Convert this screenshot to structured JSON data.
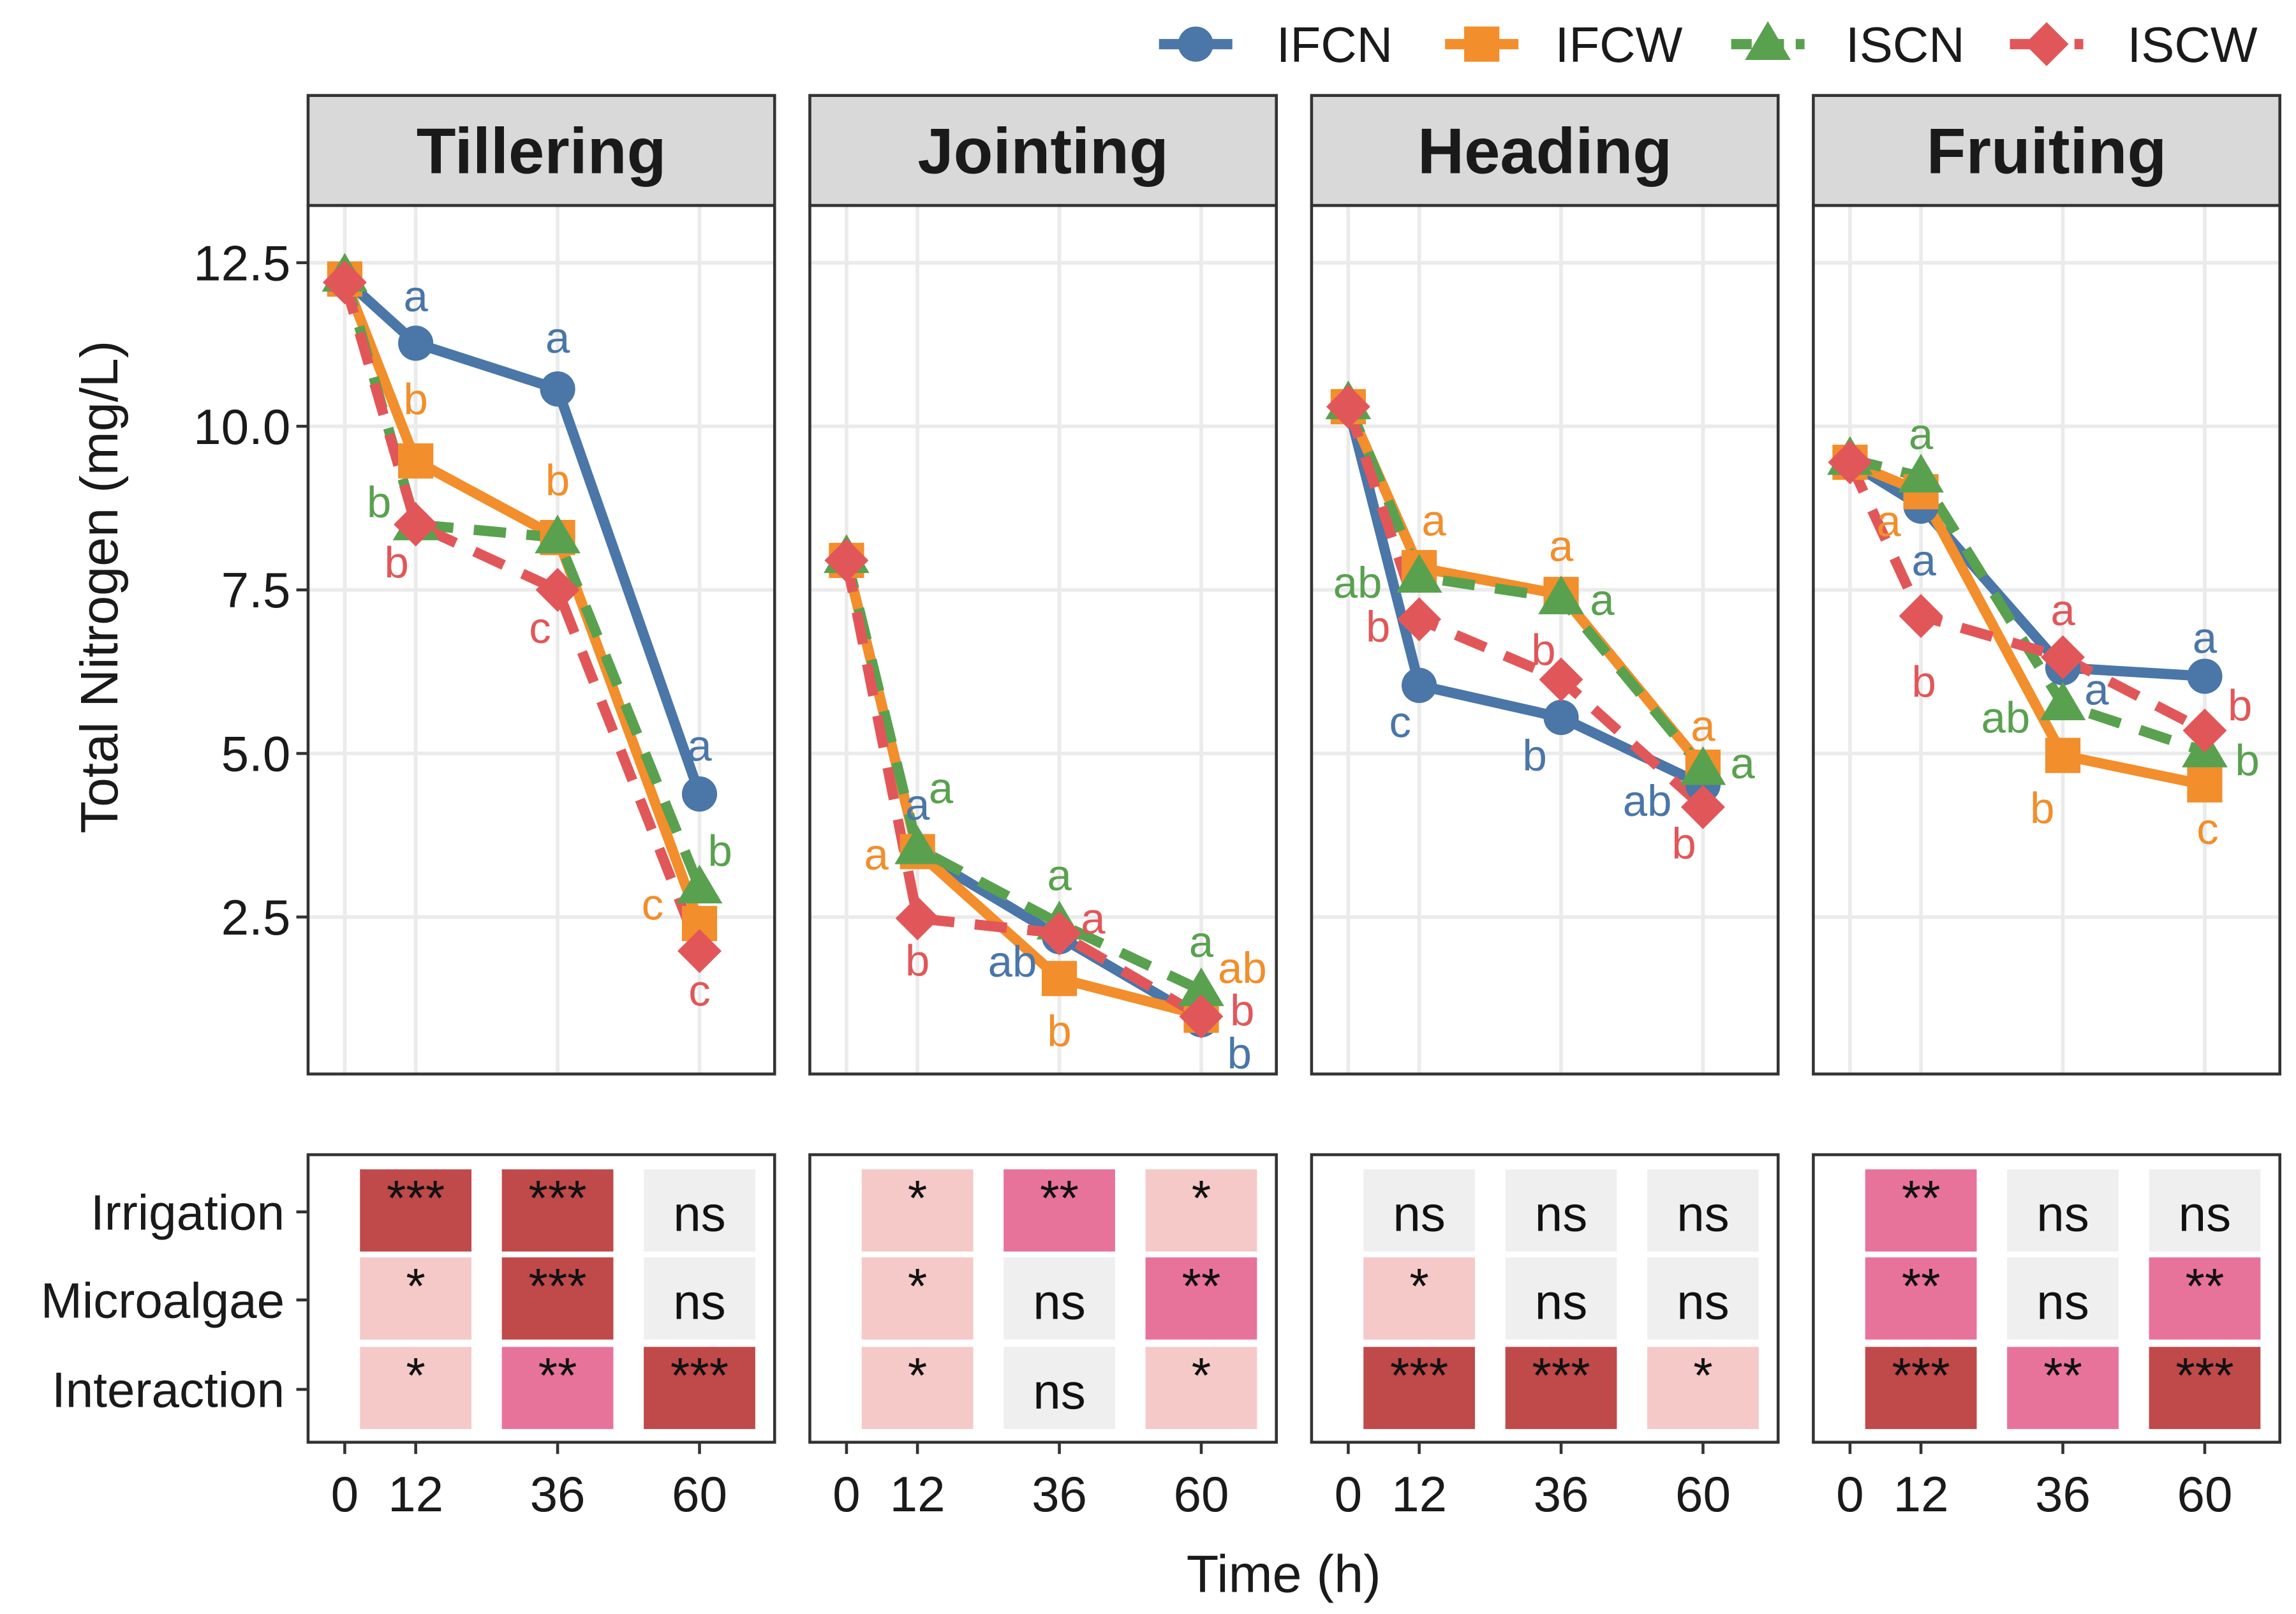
{
  "legend": {
    "items": [
      {
        "label": "IFCN",
        "color": "#4A76A8",
        "shape": "circle",
        "dash": "solid"
      },
      {
        "label": "IFCW",
        "color": "#F28E2B",
        "shape": "square",
        "dash": "solid"
      },
      {
        "label": "ISCN",
        "color": "#59A14F",
        "shape": "triangle",
        "dash": "dashed"
      },
      {
        "label": "ISCW",
        "color": "#E15759",
        "shape": "diamond",
        "dash": "dashed"
      }
    ]
  },
  "chart_data": {
    "type": "line",
    "ylabel": "Total Nitrogen (mg/L)",
    "xlabel": "Time (h)",
    "x": [
      0,
      12,
      36,
      60
    ],
    "x_tick_labels": [
      "0",
      "12",
      "36",
      "60"
    ],
    "y_ticks": [
      2.5,
      5.0,
      7.5,
      10.0,
      12.5
    ],
    "y_tick_labels": [
      "2.5",
      "5.0",
      "7.5",
      "10.0",
      "12.5"
    ],
    "ylim": [
      0.35,
      13.2
    ],
    "grid": true,
    "legend_position": "top-right",
    "panels": [
      {
        "title": "Tillering",
        "series": [
          {
            "name": "IFCN",
            "values": [
              12.25,
              11.27,
              10.57,
              4.38
            ],
            "letters": [
              "",
              "a",
              "a",
              "a"
            ]
          },
          {
            "name": "IFCW",
            "values": [
              12.25,
              9.47,
              8.3,
              2.4
            ],
            "letters": [
              "",
              "b",
              "b",
              "c"
            ]
          },
          {
            "name": "ISCN",
            "values": [
              12.3,
              8.5,
              8.3,
              2.95
            ],
            "letters": [
              "",
              "b",
              "",
              "b"
            ]
          },
          {
            "name": "ISCW",
            "values": [
              12.2,
              8.5,
              7.5,
              1.98
            ],
            "letters": [
              "",
              "b",
              "c",
              "c"
            ]
          }
        ]
      },
      {
        "title": "Jointing",
        "series": [
          {
            "name": "IFCN",
            "values": [
              7.95,
              3.5,
              2.2,
              0.93
            ],
            "letters": [
              "",
              "a",
              "ab",
              "b"
            ]
          },
          {
            "name": "IFCW",
            "values": [
              7.95,
              3.5,
              1.56,
              1.0
            ],
            "letters": [
              "",
              "a",
              "b",
              "ab"
            ]
          },
          {
            "name": "ISCN",
            "values": [
              8.0,
              3.55,
              2.4,
              1.38
            ],
            "letters": [
              "",
              "a",
              "a",
              "a"
            ]
          },
          {
            "name": "ISCW",
            "values": [
              7.95,
              2.48,
              2.25,
              0.98
            ],
            "letters": [
              "",
              "b",
              "a",
              "b"
            ]
          }
        ]
      },
      {
        "title": "Heading",
        "series": [
          {
            "name": "IFCN",
            "values": [
              10.3,
              6.04,
              5.55,
              4.52
            ],
            "letters": [
              "",
              "c",
              "b",
              "ab"
            ]
          },
          {
            "name": "IFCW",
            "values": [
              10.3,
              7.84,
              7.43,
              4.79
            ],
            "letters": [
              "",
              "a",
              "a",
              "a"
            ]
          },
          {
            "name": "ISCN",
            "values": [
              10.35,
              7.7,
              7.37,
              4.76
            ],
            "letters": [
              "",
              "ab",
              "a",
              "a"
            ]
          },
          {
            "name": "ISCW",
            "values": [
              10.3,
              7.05,
              6.13,
              4.18
            ],
            "letters": [
              "",
              "b",
              "b",
              "b"
            ]
          }
        ]
      },
      {
        "title": "Fruiting",
        "series": [
          {
            "name": "IFCN",
            "values": [
              9.45,
              8.78,
              6.31,
              6.18
            ],
            "letters": [
              "",
              "a",
              "a",
              "a"
            ]
          },
          {
            "name": "IFCW",
            "values": [
              9.45,
              9.0,
              4.97,
              4.52
            ],
            "letters": [
              "",
              "a",
              "b",
              "c"
            ]
          },
          {
            "name": "ISCN",
            "values": [
              9.5,
              9.23,
              5.75,
              5.03
            ],
            "letters": [
              "",
              "a",
              "ab",
              "b"
            ]
          },
          {
            "name": "ISCW",
            "values": [
              9.45,
              7.1,
              6.47,
              5.35
            ],
            "letters": [
              "",
              "b",
              "a",
              "b"
            ]
          }
        ]
      }
    ],
    "significance": {
      "type": "heatmap",
      "rows": [
        "Irrigation",
        "Microalgae",
        "Interaction"
      ],
      "columns": [
        "12",
        "36",
        "60"
      ],
      "colors": {
        "***": "#C0494A",
        "**": "#E8739A",
        "*": "#F5C9C8",
        "ns": "#EFEFEF"
      },
      "panels": [
        [
          [
            "***",
            "***",
            "ns"
          ],
          [
            "*",
            "***",
            "ns"
          ],
          [
            "*",
            "**",
            "***"
          ]
        ],
        [
          [
            "*",
            "**",
            "*"
          ],
          [
            "*",
            "ns",
            "**"
          ],
          [
            "*",
            "ns",
            "*"
          ]
        ],
        [
          [
            "ns",
            "ns",
            "ns"
          ],
          [
            "*",
            "ns",
            "ns"
          ],
          [
            "***",
            "***",
            "*"
          ]
        ],
        [
          [
            "**",
            "ns",
            "ns"
          ],
          [
            "**",
            "ns",
            "**"
          ],
          [
            "***",
            "**",
            "***"
          ]
        ]
      ]
    }
  }
}
